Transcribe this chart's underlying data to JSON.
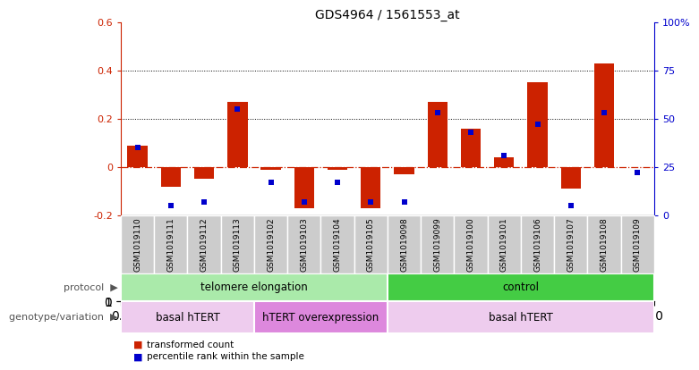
{
  "title": "GDS4964 / 1561553_at",
  "samples": [
    "GSM1019110",
    "GSM1019111",
    "GSM1019112",
    "GSM1019113",
    "GSM1019102",
    "GSM1019103",
    "GSM1019104",
    "GSM1019105",
    "GSM1019098",
    "GSM1019099",
    "GSM1019100",
    "GSM1019101",
    "GSM1019106",
    "GSM1019107",
    "GSM1019108",
    "GSM1019109"
  ],
  "bar_values": [
    0.09,
    -0.08,
    -0.05,
    0.27,
    -0.01,
    -0.17,
    -0.01,
    -0.17,
    -0.03,
    0.27,
    0.16,
    0.04,
    0.35,
    -0.09,
    0.43,
    0.0
  ],
  "dot_values_pct": [
    35,
    5,
    7,
    55,
    17,
    7,
    17,
    7,
    7,
    53,
    43,
    31,
    47,
    5,
    53,
    22
  ],
  "ylim": [
    -0.2,
    0.6
  ],
  "y2lim": [
    0,
    100
  ],
  "yticks": [
    -0.2,
    0.0,
    0.2,
    0.4,
    0.6
  ],
  "y2ticks": [
    0,
    25,
    50,
    75,
    100
  ],
  "y2ticklabels": [
    "0",
    "25",
    "50",
    "75",
    "100%"
  ],
  "hlines": [
    0.2,
    0.4
  ],
  "bar_color": "#cc2200",
  "dot_color": "#0000cc",
  "zero_line_color": "#cc2200",
  "protocol_groups": [
    {
      "label": "telomere elongation",
      "start": 0,
      "end": 8,
      "color": "#aaeaaa"
    },
    {
      "label": "control",
      "start": 8,
      "end": 16,
      "color": "#44cc44"
    }
  ],
  "genotype_groups": [
    {
      "label": "basal hTERT",
      "start": 0,
      "end": 4,
      "color": "#eeccee"
    },
    {
      "label": "hTERT overexpression",
      "start": 4,
      "end": 8,
      "color": "#dd88dd"
    },
    {
      "label": "basal hTERT",
      "start": 8,
      "end": 16,
      "color": "#eeccee"
    }
  ],
  "legend_bar_label": "transformed count",
  "legend_dot_label": "percentile rank within the sample",
  "sample_bg_color": "#cccccc"
}
